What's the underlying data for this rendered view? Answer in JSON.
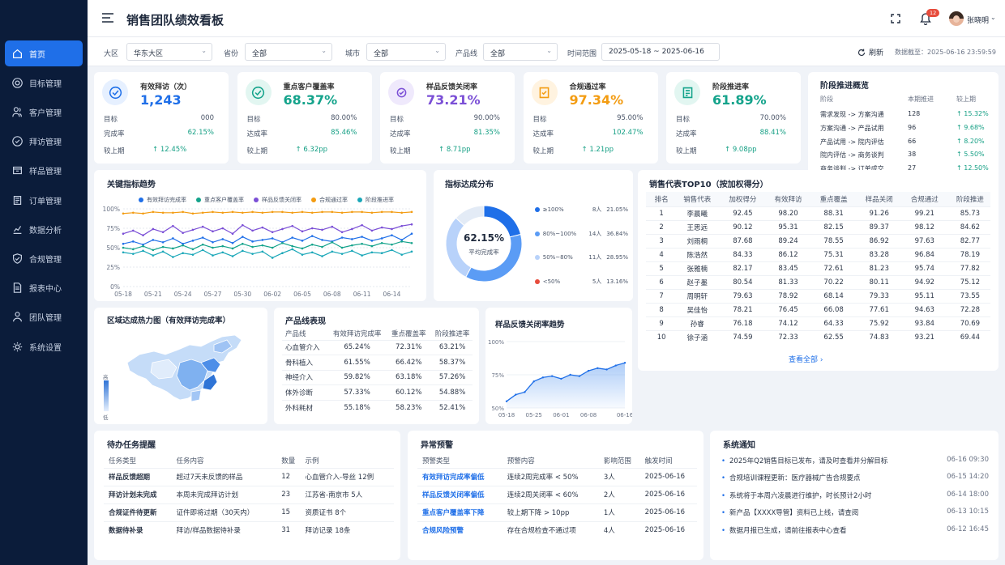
{
  "app": {
    "title": "销售团队绩效看板"
  },
  "sidebar": {
    "items": [
      {
        "label": "首页",
        "icon": "home-icon"
      },
      {
        "label": "目标管理",
        "icon": "target-icon"
      },
      {
        "label": "客户管理",
        "icon": "users-icon"
      },
      {
        "label": "拜访管理",
        "icon": "check-circle-icon"
      },
      {
        "label": "样品管理",
        "icon": "box-icon"
      },
      {
        "label": "订单管理",
        "icon": "list-icon"
      },
      {
        "label": "数据分析",
        "icon": "chart-icon"
      },
      {
        "label": "合规管理",
        "icon": "shield-icon"
      },
      {
        "label": "报表中心",
        "icon": "file-icon"
      },
      {
        "label": "团队管理",
        "icon": "team-icon"
      },
      {
        "label": "系统设置",
        "icon": "gear-icon"
      }
    ]
  },
  "header": {
    "notif_count": "12",
    "user_name": "张晓明"
  },
  "filters": {
    "region_label": "大区",
    "region_value": "华东大区",
    "province_label": "省份",
    "province_value": "全部",
    "city_label": "城市",
    "city_value": "全部",
    "product_label": "产品线",
    "product_value": "全部",
    "time_label": "时间范围",
    "time_value": "2025-05-18 ~ 2025-06-16",
    "refresh_label": "刷新",
    "data_date": "数据截至：2025-06-16 23:59:59"
  },
  "kpis": [
    {
      "label": "有效拜访（次）",
      "value": "1,243",
      "r1_label": "目标",
      "r1_value": "000",
      "r2_label": "完成率",
      "r2_value": "62.15%",
      "r3_label": "较上期",
      "r3_value": "↑ 12.45%",
      "color": "#1f6fe8",
      "bg": "#e6f0ff"
    },
    {
      "label": "重点客户覆盖率",
      "value": "68.37%",
      "r1_label": "目标",
      "r1_value": "80.00%",
      "r2_label": "达成率",
      "r2_value": "85.46%",
      "r3_label": "较上期",
      "r3_value": "↑ 6.32pp",
      "color": "#14a38b",
      "bg": "#e2f6f1"
    },
    {
      "label": "样品反馈关闭率",
      "value": "73.21%",
      "r1_label": "目标",
      "r1_value": "90.00%",
      "r2_label": "达成率",
      "r2_value": "81.35%",
      "r3_label": "较上期",
      "r3_value": "↑ 8.71pp",
      "color": "#7b4fd6",
      "bg": "#efe9fc"
    },
    {
      "label": "合规通过率",
      "value": "97.34%",
      "r1_label": "目标",
      "r1_value": "95.00%",
      "r2_label": "达成率",
      "r2_value": "102.47%",
      "r3_label": "较上期",
      "r3_value": "↑ 1.21pp",
      "color": "#f39c12",
      "bg": "#fff3e0"
    },
    {
      "label": "阶段推进率",
      "value": "61.89%",
      "r1_label": "目标",
      "r1_value": "70.00%",
      "r2_label": "达成率",
      "r2_value": "88.41%",
      "r3_label": "较上期",
      "r3_value": "↑ 9.08pp",
      "color": "#14a38b",
      "bg": "#e2f6f1"
    }
  ],
  "stages": {
    "title": "阶段推进概览",
    "h1": "阶段",
    "h2": "本期推进",
    "h3": "较上期",
    "rows": [
      {
        "stage": "需求发现 -> 方案沟通",
        "count": "128",
        "delta": "↑ 15.32%"
      },
      {
        "stage": "方案沟通 -> 产品试用",
        "count": "96",
        "delta": "↑ 9.68%"
      },
      {
        "stage": "产品试用 -> 院内评估",
        "count": "66",
        "delta": "↑ 8.20%"
      },
      {
        "stage": "院内评估 -> 商务谈判",
        "count": "38",
        "delta": "↑ 5.50%"
      },
      {
        "stage": "商务谈判 -> 订单成交",
        "count": "27",
        "delta": "↑ 12.50%"
      }
    ]
  },
  "chart_data": [
    {
      "type": "line",
      "title": "关键指标趋势",
      "x": [
        "05-18",
        "05-19",
        "05-20",
        "05-21",
        "05-22",
        "05-23",
        "05-24",
        "05-25",
        "05-26",
        "05-27",
        "05-28",
        "05-29",
        "05-30",
        "05-31",
        "06-01",
        "06-02",
        "06-03",
        "06-04",
        "06-05",
        "06-06",
        "06-07",
        "06-08",
        "06-09",
        "06-10",
        "06-11",
        "06-12",
        "06-13",
        "06-14",
        "06-15",
        "06-16"
      ],
      "xticks": [
        "05-18",
        "05-21",
        "05-24",
        "05-27",
        "05-30",
        "06-02",
        "06-05",
        "06-08",
        "06-11",
        "06-14"
      ],
      "yticks": [
        "0%",
        "25%",
        "50%",
        "75%",
        "100%"
      ],
      "ylim": [
        0,
        100
      ],
      "series": [
        {
          "name": "有效拜访完成率",
          "color": "#1f6fe8",
          "values": [
            55,
            58,
            54,
            60,
            57,
            62,
            55,
            59,
            63,
            57,
            61,
            56,
            64,
            58,
            60,
            62,
            57,
            63,
            59,
            65,
            60,
            58,
            63,
            61,
            64,
            59,
            62,
            66,
            60,
            68
          ]
        },
        {
          "name": "重点客户覆盖率",
          "color": "#14a38b",
          "values": [
            50,
            48,
            52,
            47,
            51,
            49,
            53,
            48,
            54,
            50,
            52,
            49,
            55,
            51,
            53,
            50,
            56,
            52,
            49,
            54,
            51,
            57,
            50,
            53,
            55,
            52,
            56,
            54,
            58,
            56
          ]
        },
        {
          "name": "样品反馈关闭率",
          "color": "#7b4fd6",
          "values": [
            68,
            72,
            66,
            74,
            70,
            78,
            69,
            73,
            77,
            71,
            75,
            68,
            79,
            72,
            76,
            70,
            74,
            78,
            71,
            75,
            73,
            77,
            70,
            74,
            79,
            72,
            76,
            74,
            78,
            80
          ]
        },
        {
          "name": "合规通过率",
          "color": "#f39c12",
          "values": [
            94,
            95,
            94,
            96,
            95,
            95,
            96,
            94,
            95,
            96,
            95,
            96,
            95,
            96,
            95,
            96,
            96,
            95,
            96,
            95,
            96,
            96,
            95,
            96,
            96,
            95,
            96,
            96,
            95,
            96
          ]
        },
        {
          "name": "阶段推进率",
          "color": "#1aa7b8",
          "values": [
            44,
            42,
            46,
            40,
            45,
            38,
            43,
            41,
            47,
            40,
            44,
            39,
            46,
            42,
            45,
            37,
            43,
            48,
            41,
            44,
            39,
            45,
            42,
            46,
            40,
            44,
            43,
            47,
            41,
            45
          ]
        }
      ]
    },
    {
      "type": "pie",
      "title": "指标达成分布",
      "center_value": "62.15%",
      "center_label": "平均完成率",
      "slices": [
        {
          "label": "≥100%",
          "count": "8人",
          "value": 21.05,
          "percent": "21.05%",
          "color": "#1f6fe8"
        },
        {
          "label": "80%~100%",
          "count": "14人",
          "value": 36.84,
          "percent": "36.84%",
          "color": "#5b9cf5"
        },
        {
          "label": "50%~80%",
          "count": "11人",
          "value": 28.95,
          "percent": "28.95%",
          "color": "#b8d2fa"
        },
        {
          "label": "<50%",
          "count": "5人",
          "value": 13.16,
          "percent": "13.16%",
          "color": "#e3ebf6"
        }
      ]
    },
    {
      "type": "area",
      "title": "样品反馈关闭率趋势",
      "x": [
        "05-18",
        "05-20",
        "05-22",
        "05-25",
        "05-27",
        "05-29",
        "06-01",
        "06-03",
        "06-05",
        "06-08",
        "06-10",
        "06-12",
        "06-14",
        "06-16"
      ],
      "xticks": [
        "05-18",
        "05-25",
        "06-01",
        "06-08",
        "06-16"
      ],
      "yticks": [
        "50%",
        "75%",
        "100%"
      ],
      "ylim": [
        50,
        100
      ],
      "values": [
        55,
        60,
        62,
        70,
        73,
        74,
        72,
        75,
        74,
        78,
        80,
        79,
        82,
        84
      ]
    }
  ],
  "map": {
    "title": "区域达成热力图（有效拜访完成率）",
    "legend_high": "高",
    "legend_low": "低"
  },
  "top10": {
    "title": "销售代表TOP10（按加权得分）",
    "headers": [
      "排名",
      "销售代表",
      "加权得分",
      "有效拜访",
      "重点覆盖",
      "样品关闭",
      "合规通过",
      "阶段推进"
    ],
    "rows": [
      [
        "1",
        "李晨曦",
        "92.45",
        "98.20",
        "88.31",
        "91.26",
        "99.21",
        "85.73"
      ],
      [
        "2",
        "王思远",
        "90.12",
        "95.31",
        "82.15",
        "89.37",
        "98.12",
        "84.62"
      ],
      [
        "3",
        "刘雨桐",
        "87.68",
        "89.24",
        "78.55",
        "86.92",
        "97.63",
        "82.77"
      ],
      [
        "4",
        "陈浩然",
        "84.33",
        "86.12",
        "75.31",
        "83.28",
        "96.84",
        "78.19"
      ],
      [
        "5",
        "张雅楠",
        "82.17",
        "83.45",
        "72.61",
        "81.23",
        "95.74",
        "77.82"
      ],
      [
        "6",
        "赵子墨",
        "80.54",
        "81.33",
        "70.22",
        "80.11",
        "94.92",
        "75.12"
      ],
      [
        "7",
        "周明轩",
        "79.63",
        "78.92",
        "68.14",
        "79.33",
        "95.11",
        "73.55"
      ],
      [
        "8",
        "吴佳怡",
        "78.21",
        "76.45",
        "66.08",
        "77.61",
        "94.63",
        "72.28"
      ],
      [
        "9",
        "孙睿",
        "76.18",
        "74.12",
        "64.33",
        "75.92",
        "93.84",
        "70.69"
      ],
      [
        "10",
        "徐子涵",
        "74.59",
        "72.33",
        "62.55",
        "74.83",
        "93.21",
        "69.44"
      ]
    ],
    "view_all": "查看全部"
  },
  "products": {
    "title": "产品线表现",
    "headers": [
      "产品线",
      "有效拜访完成率",
      "重点覆盖率",
      "阶段推进率"
    ],
    "rows": [
      [
        "心血管介入",
        "65.24%",
        "72.31%",
        "63.21%"
      ],
      [
        "骨科植入",
        "61.55%",
        "66.42%",
        "58.37%"
      ],
      [
        "神经介入",
        "59.82%",
        "63.18%",
        "57.26%"
      ],
      [
        "体外诊断",
        "57.33%",
        "60.12%",
        "54.88%"
      ],
      [
        "外科耗材",
        "55.18%",
        "58.23%",
        "52.41%"
      ]
    ]
  },
  "tasks": {
    "title": "待办任务提醒",
    "headers": [
      "任务类型",
      "任务内容",
      "数量",
      "示例"
    ],
    "rows": [
      [
        "样品反馈超期",
        "超过7天未反馈的样品",
        "12",
        "心血管介入-导丝 12例"
      ],
      [
        "拜访计划未完成",
        "本周未完成拜访计划",
        "23",
        "江苏省-南京市 5人"
      ],
      [
        "合规证件待更新",
        "证件即将过期（30天内）",
        "15",
        "资质证书 8个"
      ],
      [
        "数据待补录",
        "拜访/样品数据待补录",
        "31",
        "拜访记录 18条"
      ]
    ]
  },
  "alerts": {
    "title": "异常预警",
    "headers": [
      "预警类型",
      "预警内容",
      "影响范围",
      "触发时间"
    ],
    "rows": [
      [
        "有效拜访完成率偏低",
        "连续2周完成率 < 50%",
        "3人",
        "2025-06-16"
      ],
      [
        "样品反馈关闭率偏低",
        "连续2周关闭率 < 60%",
        "2人",
        "2025-06-16"
      ],
      [
        "重点客户覆盖率下降",
        "较上期下降 > 10pp",
        "1人",
        "2025-06-16"
      ],
      [
        "合规风险预警",
        "存在合规检查不通过项",
        "4人",
        "2025-06-16"
      ]
    ]
  },
  "notices": {
    "title": "系统通知",
    "items": [
      {
        "text": "2025年Q2销售目标已发布，请及时查看并分解目标",
        "time": "06-16 09:30"
      },
      {
        "text": "合规培训课程更新：医疗器械广告合规要点",
        "time": "06-15 14:20"
      },
      {
        "text": "系统将于本周六凌晨进行维护，时长预计2小时",
        "time": "06-14 18:00"
      },
      {
        "text": "新产品【XXXX导管】资料已上线，请查阅",
        "time": "06-13 10:15"
      },
      {
        "text": "数据月报已生成，请前往报表中心查看",
        "time": "06-12 16:45"
      }
    ]
  }
}
